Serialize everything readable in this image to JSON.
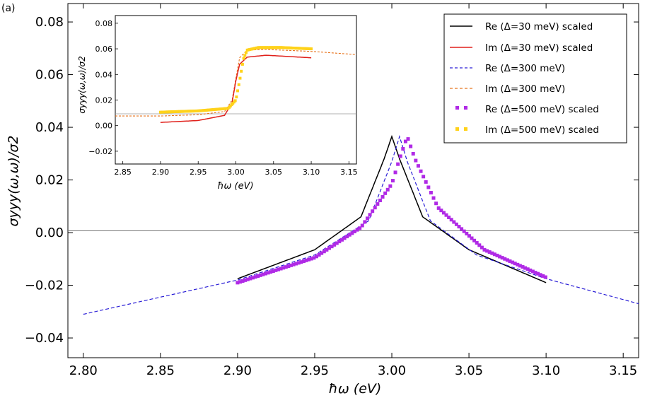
{
  "chart_data": {
    "type": "line",
    "panel_label": "(a)",
    "xlabel": "ħω (eV)",
    "ylabel": "σyyy(ω,ω)/σ2",
    "xlim": [
      2.79,
      3.16
    ],
    "ylim": [
      -0.0475,
      0.087
    ],
    "xticks": [
      "2.80",
      "2.85",
      "2.90",
      "2.95",
      "3.00",
      "3.05",
      "3.10",
      "3.15"
    ],
    "yticks": [
      "−0.04",
      "−0.02",
      "0.00",
      "0.02",
      "0.04",
      "0.06",
      "0.08"
    ],
    "legend_position": "top-right",
    "legend": [
      "Re (Δ=30 meV) scaled",
      "Im (Δ=30 meV) scaled",
      "Re (Δ=300 meV)",
      "Im (Δ=300 meV)",
      "Re (Δ=500 meV) scaled",
      "Im (Δ=500 meV) scaled"
    ],
    "series_colors": [
      "#000000",
      "#e0201b",
      "#2a1ed6",
      "#e8731c",
      "#b02ae6",
      "#ffd21a"
    ],
    "main_series": [
      {
        "name": "Re (Δ=30 meV) scaled",
        "x": [
          2.9,
          2.95,
          2.98,
          2.995,
          3.0,
          3.005,
          3.02,
          3.05,
          3.1
        ],
        "y": [
          -0.0175,
          -0.0065,
          0.006,
          0.028,
          0.0365,
          0.028,
          0.006,
          -0.0065,
          -0.019
        ]
      },
      {
        "name": "Re (Δ=300 meV)",
        "x": [
          2.8,
          2.85,
          2.9,
          2.95,
          2.985,
          3.0,
          3.005,
          3.01,
          3.025,
          3.055,
          3.1,
          3.16
        ],
        "y": [
          -0.031,
          -0.0245,
          -0.018,
          -0.0085,
          0.0045,
          0.027,
          0.0365,
          0.027,
          0.0045,
          -0.0085,
          -0.0175,
          -0.027
        ]
      },
      {
        "name": "Re (Δ=500 meV) scaled",
        "x": [
          2.9,
          2.95,
          2.98,
          3.0,
          3.005,
          3.01,
          3.015,
          3.03,
          3.06,
          3.1
        ],
        "y": [
          -0.019,
          -0.0095,
          0.002,
          0.0185,
          0.028,
          0.0365,
          0.028,
          0.0095,
          -0.0065,
          -0.017
        ]
      }
    ],
    "inset": {
      "xlabel": "ħω (eV)",
      "ylabel": "σyyy(ω,ω)/σ2",
      "xlim": [
        2.84,
        3.16
      ],
      "ylim": [
        -0.03,
        0.086
      ],
      "xticks": [
        "2.85",
        "2.90",
        "2.95",
        "3.00",
        "3.05",
        "3.10",
        "3.15"
      ],
      "yticks": [
        "−0.02",
        "0.00",
        "0.02",
        "0.04",
        "0.06",
        "0.08"
      ],
      "series": [
        {
          "name": "Im (Δ=300 meV)",
          "x": [
            2.84,
            2.9,
            2.95,
            2.985,
            2.995,
            3.0,
            3.005,
            3.015,
            3.04,
            3.1,
            3.16
          ],
          "y": [
            0.0075,
            0.0075,
            0.0085,
            0.011,
            0.02,
            0.037,
            0.053,
            0.059,
            0.0595,
            0.058,
            0.0555
          ]
        },
        {
          "name": "Im (Δ=30 meV) scaled",
          "x": [
            2.9,
            2.95,
            2.985,
            2.995,
            3.0,
            3.005,
            3.015,
            3.04,
            3.1
          ],
          "y": [
            0.0025,
            0.004,
            0.008,
            0.018,
            0.035,
            0.048,
            0.0535,
            0.055,
            0.053
          ]
        },
        {
          "name": "Im (Δ=500 meV) scaled",
          "x": [
            2.9,
            2.95,
            2.99,
            3.0,
            3.005,
            3.01,
            3.015,
            3.03,
            3.06,
            3.1
          ],
          "y": [
            0.0105,
            0.0115,
            0.0135,
            0.02,
            0.035,
            0.052,
            0.059,
            0.061,
            0.061,
            0.06
          ]
        }
      ]
    }
  }
}
